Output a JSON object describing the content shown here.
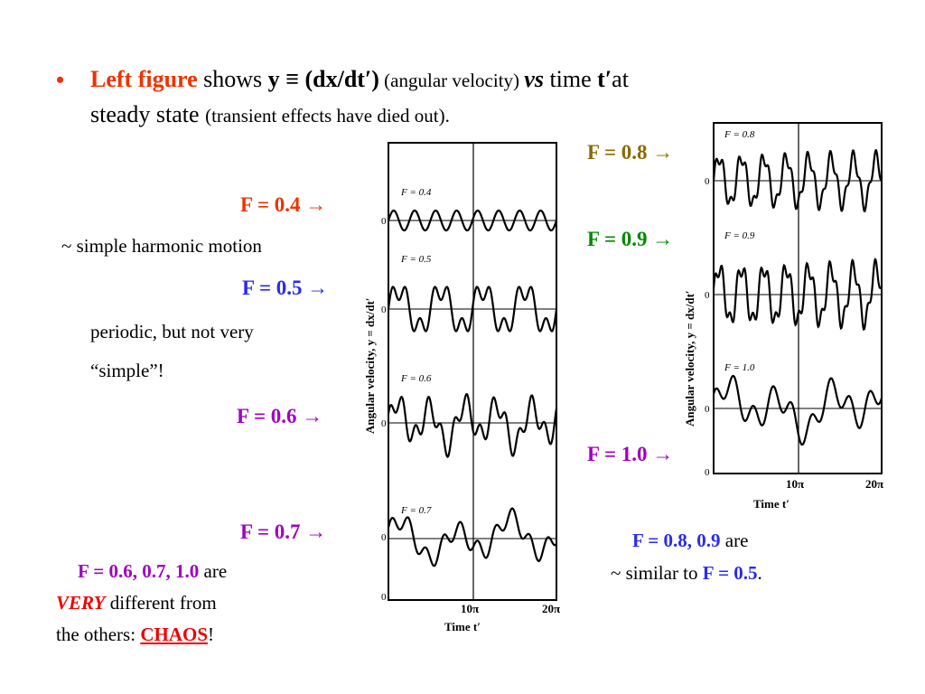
{
  "intro": {
    "bullet": "•",
    "left_figure": "Left figure",
    "shows": " shows ",
    "y_def": "y ≡ (dx/dt′)",
    "angular_velocity": " (angular velocity) ",
    "vs": "vs",
    "time": " time ",
    "t_prime": "t′",
    "at": "at",
    "steady_state": "steady state ",
    "transient": "(transient effects have died out)."
  },
  "labels": {
    "f04": "F = 0.4 →",
    "f05": "F = 0.5 →",
    "f06": "F = 0.6 →",
    "f07": "F = 0.7 →",
    "f08": "F = 0.8 →",
    "f09": "F = 0.9 →",
    "f10": "F = 1.0 →"
  },
  "notes": {
    "shm": "~ simple harmonic motion",
    "periodic_1": "periodic, but not very",
    "periodic_2": "“simple”!",
    "chaos_f": "F = 0.6, 0.7, 1.0",
    "chaos_are": " are",
    "very": "VERY",
    "different": " different from",
    "others": "the others:  ",
    "chaos": "CHAOS",
    "excl": "!",
    "similar_f": "F = 0.8, 0.9",
    "similar_are": " are",
    "similar_to": "~ similar  to ",
    "similar_f05": "F = 0.5",
    "period": "."
  },
  "figure_left": {
    "ylabel": "Angular velocity, y = dx/dt′",
    "xlabel": "Time t′",
    "tick_10": "10π",
    "tick_20": "20π",
    "zero": "0",
    "panels": [
      "F = 0.4",
      "F = 0.5",
      "F = 0.6",
      "F = 0.7"
    ]
  },
  "figure_right": {
    "ylabel": "Angular velocity, y = dx/dt′",
    "xlabel": "Time t′",
    "tick_10": "10π",
    "tick_20": "20π",
    "zero": "0",
    "panels": [
      "F = 0.8",
      "F = 0.9",
      "F = 1.0"
    ]
  }
}
